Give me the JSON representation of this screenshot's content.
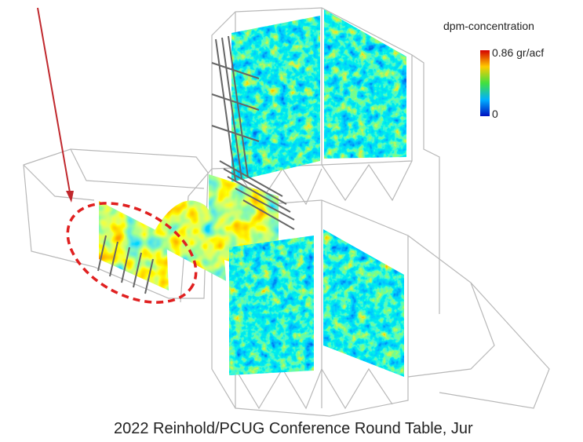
{
  "legend": {
    "title": "dpm-concentration",
    "max_label": "0.86 gr/acf",
    "min_label": "0"
  },
  "caption": "2022 Reinhold/PCUG Conference Round Table, Jur"
}
